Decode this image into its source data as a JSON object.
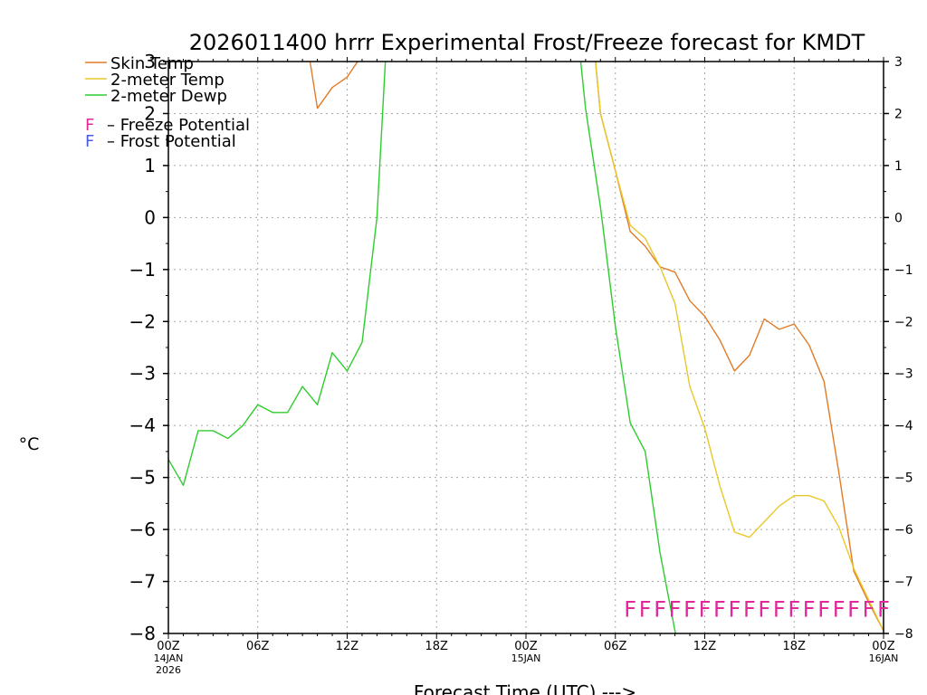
{
  "chart_data": {
    "type": "line",
    "title": "2026011400 hrrr Experimental Frost/Freeze forecast for KMDT",
    "xlabel": "Forecast Time (UTC) --->",
    "ylabel": "°C",
    "ylim": [
      -8,
      3
    ],
    "xlim": [
      0,
      48
    ],
    "yticks": [
      -8,
      -7,
      -6,
      -5,
      -4,
      -3,
      -2,
      -1,
      0,
      1,
      2,
      3
    ],
    "yticklabels": [
      "−8",
      "−7",
      "−6",
      "−5",
      "−4",
      "−3",
      "−2",
      "−1",
      "0",
      "1",
      "2",
      "3"
    ],
    "xticks": [
      {
        "x": 0,
        "label": "00Z",
        "sub": [
          "14JAN",
          "2026"
        ]
      },
      {
        "x": 6,
        "label": "06Z",
        "sub": []
      },
      {
        "x": 12,
        "label": "12Z",
        "sub": []
      },
      {
        "x": 18,
        "label": "18Z",
        "sub": []
      },
      {
        "x": 24,
        "label": "00Z",
        "sub": [
          "15JAN"
        ]
      },
      {
        "x": 30,
        "label": "06Z",
        "sub": []
      },
      {
        "x": 36,
        "label": "12Z",
        "sub": []
      },
      {
        "x": 42,
        "label": "18Z",
        "sub": []
      },
      {
        "x": 48,
        "label": "00Z",
        "sub": [
          "16JAN"
        ]
      }
    ],
    "grid": true,
    "legend": [
      {
        "label": "Skin Temp",
        "color": "#e07b28"
      },
      {
        "label": "2-meter Temp",
        "color": "#e8c828"
      },
      {
        "label": "2-meter Dewp",
        "color": "#2ecc2e"
      }
    ],
    "potential_legend": [
      {
        "symbol": "F",
        "text": "– Freeze Potential",
        "color": "#e0289a"
      },
      {
        "symbol": "F",
        "text": "– Frost Potential",
        "color": "#4a5de0"
      }
    ],
    "series": [
      {
        "name": "Skin Temp",
        "color": "#e07b28",
        "x": [
          9.4,
          10,
          11,
          12,
          12.7,
          28.6,
          29,
          30,
          31,
          32,
          33,
          34,
          35,
          36,
          37,
          38,
          39,
          40,
          41,
          42,
          43,
          44,
          45,
          46,
          47,
          48
        ],
        "y": [
          3.2,
          2.1,
          2.5,
          2.7,
          3.0,
          3.2,
          2.0,
          0.9,
          -0.27,
          -0.55,
          -0.95,
          -1.05,
          -1.6,
          -1.9,
          -2.35,
          -2.95,
          -2.65,
          -1.95,
          -2.15,
          -2.05,
          -2.45,
          -3.15,
          -4.9,
          -6.8,
          -7.4,
          -7.95
        ]
      },
      {
        "name": "2-meter Temp",
        "color": "#e8c828",
        "x": [
          28.6,
          29,
          30,
          31,
          32,
          33,
          34,
          35,
          36,
          37,
          38,
          39,
          40,
          41,
          42,
          43,
          44,
          45,
          46,
          47,
          48
        ],
        "y": [
          3.2,
          2.0,
          0.9,
          -0.15,
          -0.4,
          -0.95,
          -1.65,
          -3.25,
          -4.05,
          -5.15,
          -6.05,
          -6.15,
          -5.85,
          -5.55,
          -5.35,
          -5.35,
          -5.45,
          -5.95,
          -6.75,
          -7.35,
          -7.95
        ]
      },
      {
        "name": "2-meter Dewp",
        "color": "#2ecc2e",
        "x": [
          0,
          1,
          2,
          3,
          4,
          5,
          6,
          7,
          8,
          9,
          10,
          11,
          12,
          13,
          14,
          14.6,
          27.6,
          28,
          29,
          30,
          31,
          32,
          33,
          34,
          34.8
        ],
        "y": [
          -4.65,
          -5.15,
          -4.1,
          -4.1,
          -4.25,
          -4.0,
          -3.6,
          -3.75,
          -3.75,
          -3.25,
          -3.6,
          -2.6,
          -2.95,
          -2.4,
          0.0,
          3.2,
          3.2,
          2.1,
          0.2,
          -2.1,
          -3.95,
          -4.5,
          -6.45,
          -7.95,
          -9.0
        ]
      }
    ],
    "annotations": {
      "freeze_potential": {
        "symbol": "F",
        "color": "#e0289a",
        "x_start": 31,
        "x_end": 48,
        "y": -7.5
      }
    }
  }
}
